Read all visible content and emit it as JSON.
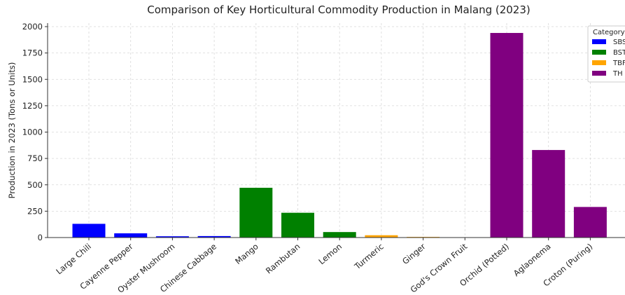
{
  "chart_data": {
    "type": "bar",
    "title": "Comparison of Key Horticultural Commodity Production in Malang (2023)",
    "xlabel": "",
    "ylabel": "Production in 2023 (Tons or Units)",
    "ylim": [
      0,
      2000
    ],
    "yticks": [
      0,
      250,
      500,
      750,
      1000,
      1250,
      1500,
      1750,
      2000
    ],
    "categories": [
      "Large Chili",
      "Cayenne Pepper",
      "Oyster Mushroom",
      "Chinese Cabbage",
      "Mango",
      "Rambutan",
      "Lemon",
      "Turmeric",
      "Ginger",
      "God's Crown Fruit",
      "Orchid (Potted)",
      "Aglaonema",
      "Croton (Puring)"
    ],
    "values": [
      130,
      40,
      12,
      14,
      472,
      235,
      52,
      22,
      6,
      2,
      1940,
      830,
      290
    ],
    "bar_category": [
      "SBS",
      "SBS",
      "SBS",
      "SBS",
      "BST",
      "BST",
      "BST",
      "TBF",
      "TBF",
      "BST",
      "TH",
      "TH",
      "TH"
    ],
    "grid": true,
    "legend": {
      "title": "Category",
      "placement": "top-right",
      "entries": [
        {
          "name": "SBS",
          "color": "#0000ff"
        },
        {
          "name": "BST",
          "color": "#008000"
        },
        {
          "name": "TBF",
          "color": "#ffa500"
        },
        {
          "name": "TH",
          "color": "#800080"
        }
      ]
    }
  }
}
